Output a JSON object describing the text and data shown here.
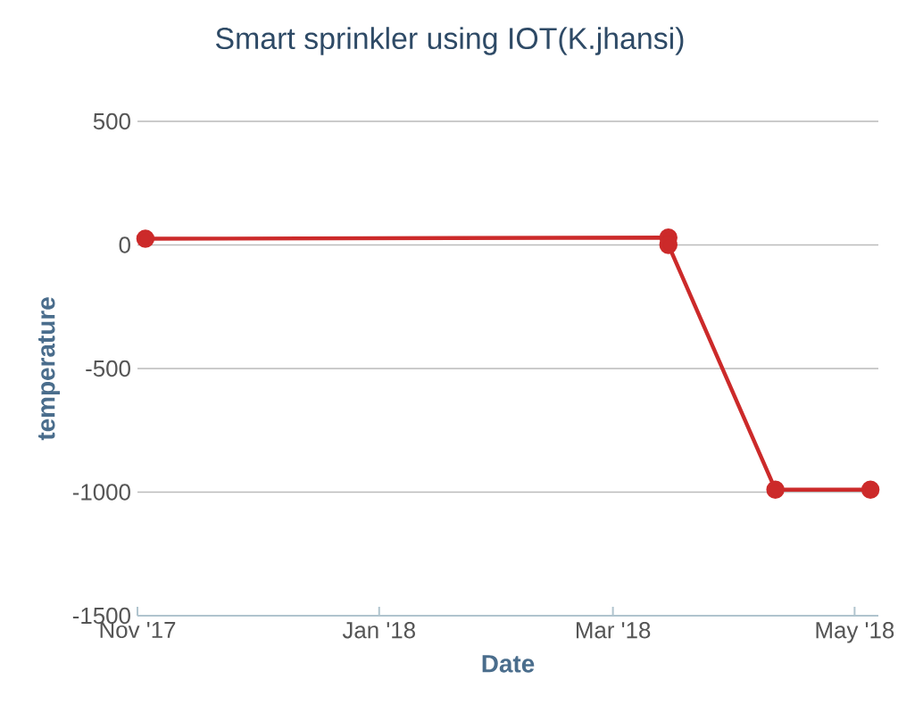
{
  "chart_data": {
    "type": "line",
    "title": "Smart sprinkler using IOT(K.jhansi)",
    "xlabel": "Date",
    "ylabel": "temperature",
    "x": [
      "2017-11-03",
      "2018-03-15",
      "2018-03-15",
      "2018-04-11",
      "2018-05-05"
    ],
    "series": [
      {
        "color": "#cc2a2a",
        "values": [
          25,
          30,
          0,
          -990,
          -990
        ]
      }
    ],
    "xlim": [
      "2017-11-01",
      "2018-05-07"
    ],
    "xticks": [
      {
        "value": "2017-11-01",
        "label": "Nov '17"
      },
      {
        "value": "2018-01-01",
        "label": "Jan '18"
      },
      {
        "value": "2018-03-01",
        "label": "Mar '18"
      },
      {
        "value": "2018-05-01",
        "label": "May '18"
      }
    ],
    "ylim": [
      -1500,
      500
    ],
    "yticks": [
      -1500,
      -1000,
      -500,
      0,
      500
    ],
    "grid": "y",
    "marker": "circle",
    "line_style": "solid"
  }
}
